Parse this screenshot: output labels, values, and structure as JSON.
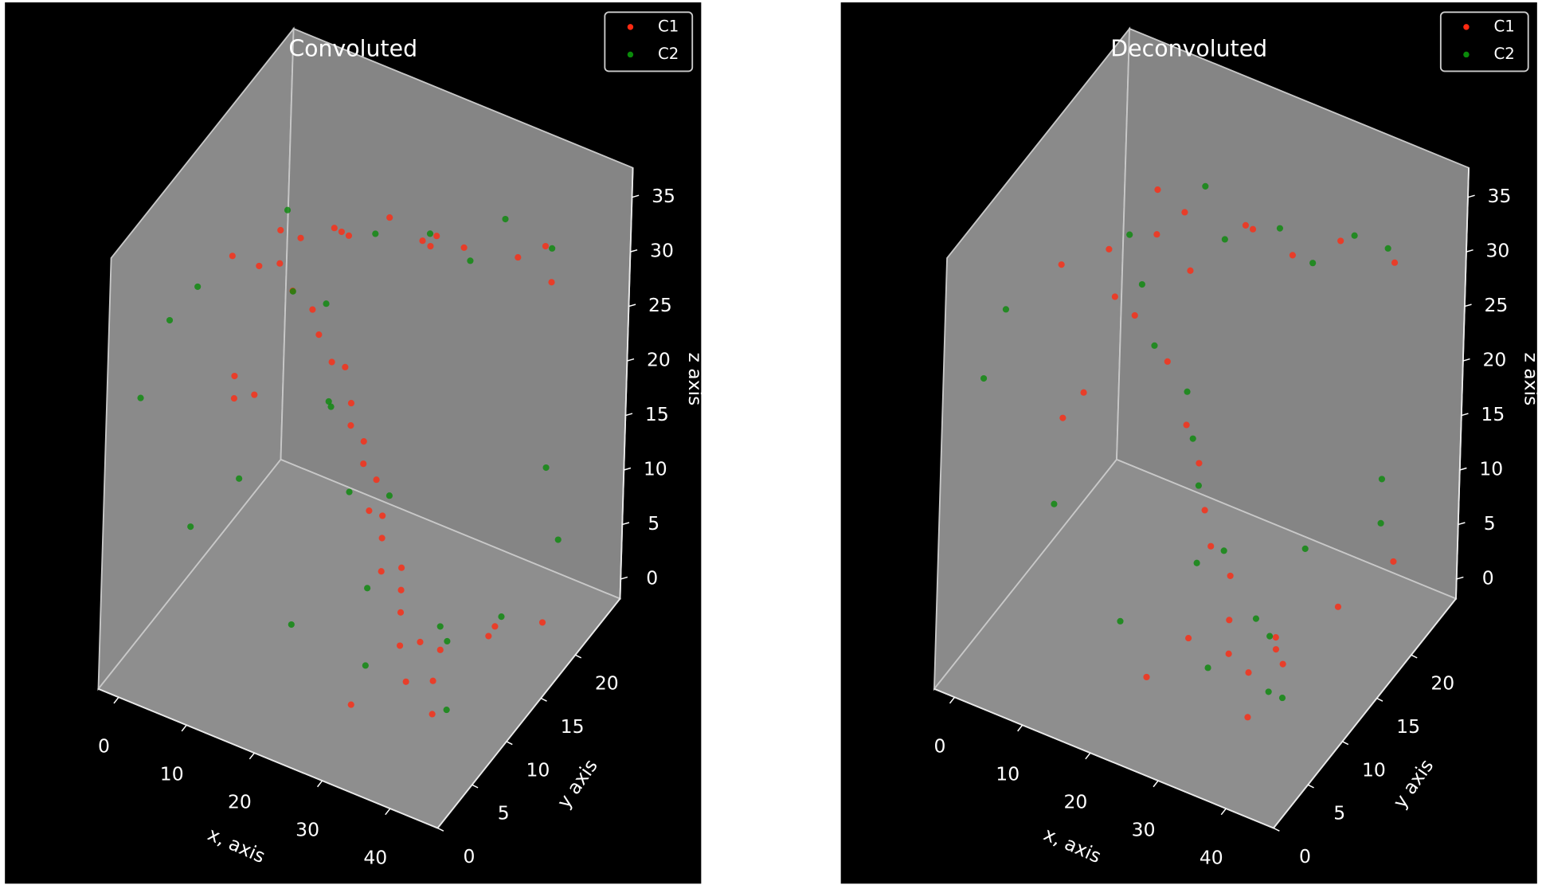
{
  "chart_data": [
    {
      "type": "scatter3d",
      "title": "Convoluted",
      "xlabel": "x, axis",
      "ylabel": "y axis",
      "zlabel": "z axis",
      "xlim": [
        -3,
        47
      ],
      "ylim": [
        0,
        26.5
      ],
      "zlim": [
        -1.8,
        37.7
      ],
      "xticks": [
        0,
        10,
        20,
        30,
        40
      ],
      "yticks": [
        0,
        5,
        10,
        15,
        20
      ],
      "zticks": [
        0,
        5,
        10,
        15,
        20,
        25,
        30,
        35
      ],
      "grid": false,
      "legend": "upper right",
      "series": [
        {
          "name": "C1",
          "color": "#ff2a12",
          "x": [
            38,
            37,
            35,
            34,
            33,
            36,
            32,
            31,
            30,
            29,
            28,
            27,
            26,
            25,
            24,
            23,
            22,
            21,
            19,
            18,
            16,
            14,
            12,
            10,
            9,
            11,
            7,
            15,
            20,
            25,
            30,
            35,
            18,
            5,
            28,
            22,
            12,
            38,
            40,
            40,
            42,
            30,
            44,
            2,
            3,
            1
          ],
          "y": [
            8,
            9,
            7,
            10,
            8,
            11,
            9,
            10,
            11,
            9,
            10,
            11,
            10,
            12,
            11,
            12,
            11,
            12,
            13,
            12,
            12,
            13,
            12,
            12,
            13,
            14,
            12,
            16,
            18,
            20,
            19,
            22,
            14,
            10,
            16,
            21,
            18,
            23,
            22,
            15,
            12,
            4,
            18,
            14,
            16,
            15
          ],
          "z": [
            0,
            2,
            3,
            4,
            5,
            3,
            7,
            8,
            9,
            10,
            12,
            13,
            14,
            15,
            17,
            18,
            20,
            21,
            23,
            24,
            26,
            27,
            29,
            31,
            33,
            32,
            30,
            32,
            33,
            31,
            32,
            30,
            34,
            32,
            34,
            29,
            30,
            31,
            29,
            3,
            5,
            2,
            2,
            15,
            14,
            16
          ]
        },
        {
          "name": "C2",
          "color": "#0a8a0a",
          "x": [
            36,
            33,
            30,
            28,
            26,
            24,
            20,
            15,
            13,
            8,
            25,
            33,
            38,
            30,
            18,
            2,
            0,
            -1,
            5,
            2,
            44,
            40,
            42,
            38,
            20,
            10
          ],
          "y": [
            12,
            14,
            6,
            8,
            13,
            9,
            10,
            14,
            11,
            15,
            19,
            22,
            24,
            20,
            18,
            8,
            6,
            3,
            12,
            8,
            20,
            22,
            6,
            18,
            5,
            20
          ],
          "z": [
            3,
            2,
            4,
            9,
            13,
            16,
            22,
            27,
            30,
            33,
            32,
            33,
            30,
            30,
            31,
            30,
            28,
            23,
            10,
            8,
            8,
            12,
            3,
            1,
            6,
            12
          ]
        }
      ]
    },
    {
      "type": "scatter3d",
      "title": "Deconvoluted",
      "xlabel": "x, axis",
      "ylabel": "y axis",
      "zlabel": "z axis",
      "xlim": [
        -3,
        47
      ],
      "ylim": [
        0,
        26.5
      ],
      "zlim": [
        -1.8,
        37.7
      ],
      "xticks": [
        0,
        10,
        20,
        30,
        40
      ],
      "yticks": [
        0,
        5,
        10,
        15,
        20
      ],
      "zticks": [
        0,
        5,
        10,
        15,
        20,
        25,
        30,
        35
      ],
      "grid": false,
      "legend": "upper right",
      "series": [
        {
          "name": "C1",
          "color": "#ff2a12",
          "x": [
            36,
            34,
            32,
            35,
            30,
            28,
            33,
            38,
            40,
            29,
            27,
            25,
            23,
            21,
            17,
            13,
            11,
            8,
            5,
            15,
            22,
            28,
            33,
            40,
            18,
            25,
            10,
            3,
            2,
            44,
            24,
            12
          ],
          "y": [
            7,
            9,
            8,
            12,
            10,
            6,
            14,
            10,
            16,
            11,
            10,
            11,
            12,
            12,
            13,
            12,
            11,
            13,
            9,
            17,
            19,
            20,
            22,
            23,
            15,
            17,
            18,
            15,
            13,
            20,
            4,
            16
          ],
          "z": [
            0,
            2,
            4,
            2,
            5,
            6,
            1,
            3,
            4,
            8,
            11,
            13,
            16,
            19,
            23,
            27,
            29,
            31,
            32,
            33,
            32,
            30,
            31,
            30,
            30,
            34,
            33,
            15,
            14,
            6,
            3,
            31
          ]
        },
        {
          "name": "C2",
          "color": "#0a8a0a",
          "x": [
            37,
            35,
            31,
            30,
            27,
            26,
            24,
            22,
            20,
            16,
            12,
            9,
            20,
            27,
            35,
            38,
            30,
            15,
            0,
            -1,
            4,
            42,
            41,
            40,
            34,
            18
          ],
          "y": [
            9,
            11,
            13,
            7,
            12,
            9,
            11,
            12,
            13,
            12,
            14,
            15,
            18,
            19,
            22,
            24,
            21,
            20,
            6,
            4,
            10,
            20,
            21,
            8,
            17,
            6
          ],
          "z": [
            1,
            4,
            3,
            3,
            9,
            10,
            15,
            18,
            21,
            25,
            28,
            31,
            31,
            33,
            32,
            30,
            29,
            33,
            29,
            24,
            9,
            9,
            12,
            2,
            7,
            5
          ]
        }
      ]
    }
  ]
}
